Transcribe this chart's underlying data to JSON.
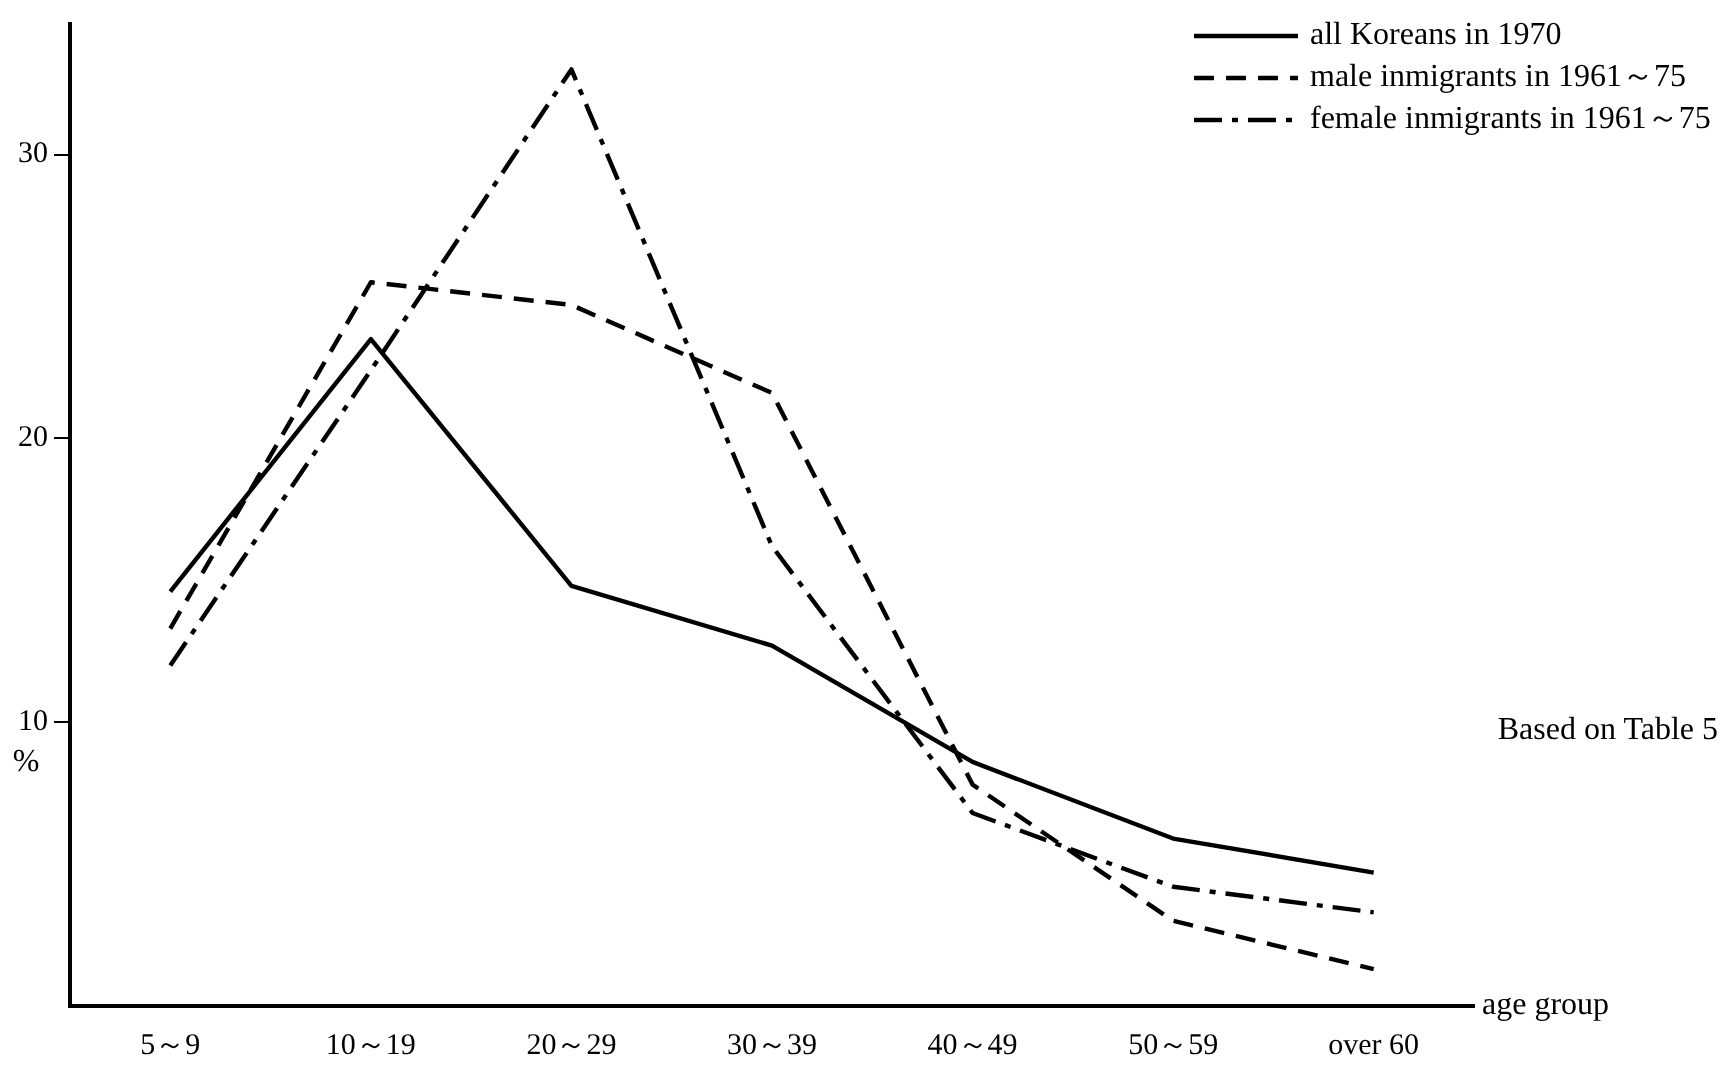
{
  "chart_data": {
    "type": "line",
    "xlabel": "age group",
    "ylabel": "%",
    "categories": [
      "5～9",
      "10～19",
      "20～29",
      "30～39",
      "40～49",
      "50～59",
      "over 60"
    ],
    "series": [
      {
        "name": "all Koreans in 1970",
        "color": "#000000",
        "line_style": "solid",
        "values": [
          14.6,
          23.5,
          14.8,
          12.7,
          8.6,
          5.9,
          4.7
        ]
      },
      {
        "name": "male inmigrants in 1961～75",
        "color": "#000000",
        "line_style": "dashed",
        "values": [
          13.3,
          25.5,
          24.7,
          21.6,
          7.8,
          3.0,
          1.3
        ]
      },
      {
        "name": "female inmigrants in 1961～75",
        "color": "#000000",
        "line_style": "dashdot",
        "values": [
          12.0,
          22.4,
          33.0,
          16.2,
          6.8,
          4.2,
          3.3
        ]
      }
    ],
    "ylim": [
      0,
      34.6
    ],
    "yticks": [
      10,
      20,
      30
    ],
    "grid": false,
    "marker": "none",
    "legend": "top right",
    "annotations": [
      "Based on Table 5"
    ]
  }
}
